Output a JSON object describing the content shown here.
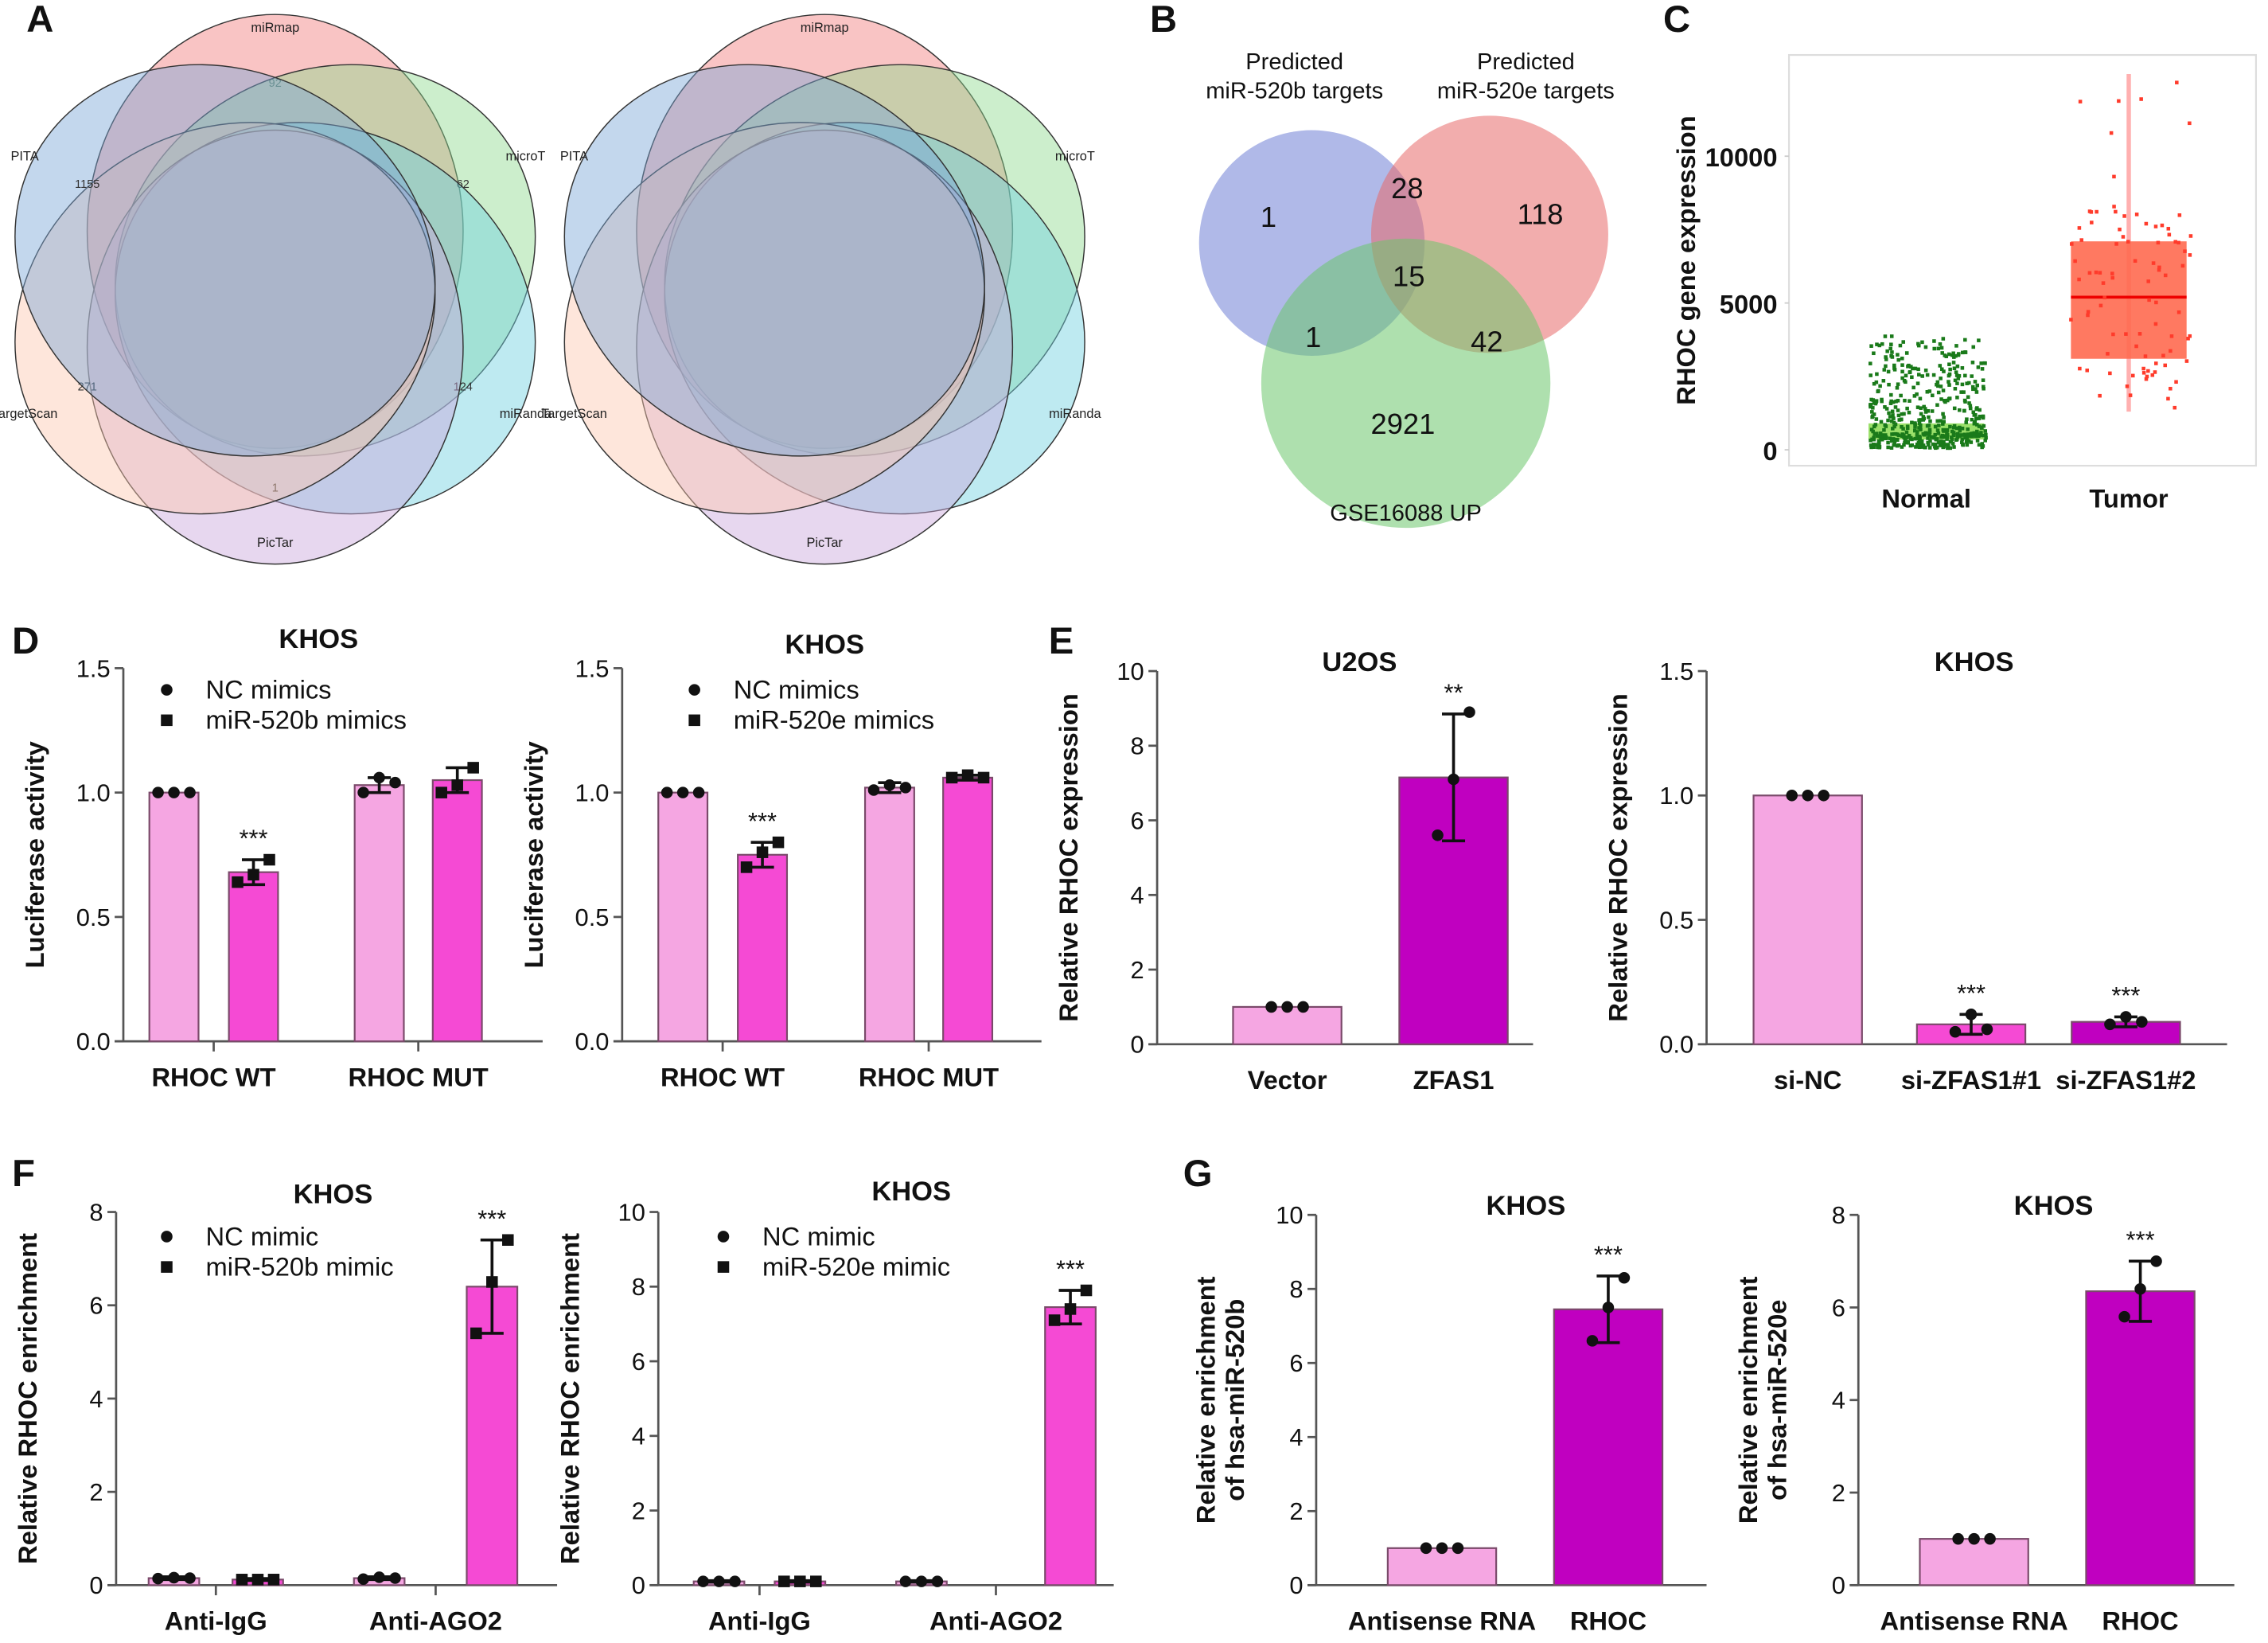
{
  "panel_letters": [
    "A",
    "B",
    "C",
    "D",
    "E",
    "F",
    "G"
  ],
  "diagrams": {
    "venn_A": [
      {
        "sets": [
          {
            "name": "miRmap",
            "color": "#f27c7c",
            "outer": "92"
          },
          {
            "name": "microT",
            "color": "#8fd98f",
            "outer": "62"
          },
          {
            "name": "miRanda",
            "color": "#6fd0e0",
            "outer": "124"
          },
          {
            "name": "PicTar",
            "color": "#c9a6dc",
            "outer": "1"
          },
          {
            "name": "TargetScan",
            "color": "#fcc7b0",
            "outer": "271"
          },
          {
            "name": "PITA",
            "color": "#7aa6d6",
            "outer": "1155"
          }
        ]
      },
      {
        "sets": [
          {
            "name": "miRmap",
            "color": "#f27c7c"
          },
          {
            "name": "microT",
            "color": "#8fd98f"
          },
          {
            "name": "miRanda",
            "color": "#6fd0e0"
          },
          {
            "name": "PicTar",
            "color": "#c9a6dc"
          },
          {
            "name": "TargetScan",
            "color": "#fcc7b0"
          },
          {
            "name": "PITA",
            "color": "#7aa6d6"
          }
        ]
      }
    ],
    "venn_B": {
      "sets": [
        {
          "name": "Predicted\nmiR-520b targets",
          "color": "#6f7fd6"
        },
        {
          "name": "Predicted\nmiR-520e targets",
          "color": "#e86a6a"
        },
        {
          "name": "GSE16088 UP",
          "color": "#6cc76c"
        }
      ],
      "regions": {
        "b_only": "1",
        "e_only": "118",
        "geo_only": "2921",
        "b_e": "28",
        "b_geo": "1",
        "e_geo": "42",
        "all": "15"
      }
    }
  },
  "chart_data": [
    {
      "panel": "C",
      "type": "box",
      "ylabel": "RHOC gene expression",
      "yticks": [
        "0",
        "5000",
        "10000"
      ],
      "ylim": [
        0,
        13000
      ],
      "categories": [
        "Normal",
        "Tumor"
      ],
      "groups": [
        {
          "name": "Normal",
          "color": "#1a7a1a",
          "median": 600,
          "q1": 350,
          "q3": 900,
          "min": 100,
          "max": 3700
        },
        {
          "name": "Tumor",
          "color": "#ff3b2b",
          "median": 5200,
          "q1": 3100,
          "q3": 7100,
          "min": 1300,
          "max": 12800
        }
      ]
    },
    {
      "panel": "D",
      "type": "bar",
      "title": "KHOS",
      "ylabel": [
        "Luciferase activity"
      ],
      "ylim": [
        0,
        1.5
      ],
      "yticks": [
        "0.0",
        "0.5",
        "1.0",
        "1.5"
      ],
      "categories": [
        "RHOC WT",
        "RHOC MUT"
      ],
      "legend": "top-left",
      "series": [
        {
          "name": "NC mimics",
          "marker": "circle",
          "colors": [
            "#f5a6e2",
            "#f5a6e2"
          ],
          "values": [
            1.0,
            1.03
          ],
          "errors": [
            0,
            0.03
          ],
          "points": [
            [
              1,
              1,
              1
            ],
            [
              1.0,
              1.06,
              1.04
            ]
          ],
          "sig": [
            "",
            ""
          ]
        },
        {
          "name": "miR-520b mimics",
          "marker": "square",
          "colors": [
            "#f54ad4",
            "#f54ad4"
          ],
          "values": [
            0.68,
            1.05
          ],
          "errors": [
            0.05,
            0.05
          ],
          "points": [
            [
              0.64,
              0.67,
              0.73
            ],
            [
              1.0,
              1.03,
              1.1
            ]
          ],
          "sig": [
            "***",
            ""
          ]
        }
      ]
    },
    {
      "panel": "D",
      "type": "bar",
      "title": "KHOS",
      "ylabel": [
        "Luciferase activity"
      ],
      "ylim": [
        0,
        1.5
      ],
      "yticks": [
        "0.0",
        "0.5",
        "1.0",
        "1.5"
      ],
      "categories": [
        "RHOC WT",
        "RHOC MUT"
      ],
      "legend": "top-left",
      "series": [
        {
          "name": "NC mimics",
          "marker": "circle",
          "colors": [
            "#f5a6e2",
            "#f5a6e2"
          ],
          "values": [
            1.0,
            1.02
          ],
          "errors": [
            0,
            0.02
          ],
          "points": [
            [
              1,
              1,
              1
            ],
            [
              1.01,
              1.03,
              1.02
            ]
          ],
          "sig": [
            "",
            ""
          ]
        },
        {
          "name": "miR-520e mimics",
          "marker": "square",
          "colors": [
            "#f54ad4",
            "#f54ad4"
          ],
          "values": [
            0.75,
            1.06
          ],
          "errors": [
            0.05,
            0.01
          ],
          "points": [
            [
              0.7,
              0.76,
              0.8
            ],
            [
              1.06,
              1.07,
              1.06
            ]
          ],
          "sig": [
            "***",
            ""
          ]
        }
      ]
    },
    {
      "panel": "E",
      "type": "bar",
      "title": "U2OS",
      "ylabel": [
        "Relative RHOC  expression"
      ],
      "ylim": [
        0,
        10
      ],
      "yticks": [
        "0",
        "2",
        "4",
        "6",
        "8",
        "10"
      ],
      "categories": [
        "Vector",
        "ZFAS1"
      ],
      "series": [
        {
          "marker": "circle",
          "colors": [
            "#f5a6e2",
            "#c000c0"
          ],
          "values": [
            1.0,
            7.15
          ],
          "errors": [
            0,
            1.7
          ],
          "points": [
            [
              1,
              1,
              1
            ],
            [
              5.6,
              7.1,
              8.9
            ]
          ],
          "sig": [
            "",
            "**"
          ]
        }
      ]
    },
    {
      "panel": "E",
      "type": "bar",
      "title": "KHOS",
      "ylabel": [
        "Relative RHOC  expression"
      ],
      "ylim": [
        0,
        1.5
      ],
      "yticks": [
        "0.0",
        "0.5",
        "1.0",
        "1.5"
      ],
      "categories": [
        "si-NC",
        "si-ZFAS1#1",
        "si-ZFAS1#2"
      ],
      "series": [
        {
          "marker": "circle",
          "colors": [
            "#f5a6e2",
            "#f54ad4",
            "#c000c0"
          ],
          "values": [
            1.0,
            0.08,
            0.09
          ],
          "errors": [
            0,
            0.04,
            0.02
          ],
          "points": [
            [
              1,
              1,
              1
            ],
            [
              0.05,
              0.12,
              0.06
            ],
            [
              0.08,
              0.11,
              0.09
            ]
          ],
          "sig": [
            "",
            "***",
            "***"
          ]
        }
      ]
    },
    {
      "panel": "F",
      "type": "bar",
      "title": "KHOS",
      "ylabel": [
        "Relative RHOC enrichment"
      ],
      "ylim": [
        0,
        8
      ],
      "yticks": [
        "0",
        "2",
        "4",
        "6",
        "8"
      ],
      "categories": [
        "Anti-IgG",
        "Anti-AGO2"
      ],
      "legend": "top-left",
      "series": [
        {
          "name": "NC mimic",
          "marker": "circle",
          "colors": [
            "#f5a6e2",
            "#f5a6e2"
          ],
          "values": [
            0.15,
            0.15
          ],
          "errors": [
            0.03,
            0.03
          ],
          "points": [
            [
              0.14,
              0.16,
              0.15
            ],
            [
              0.13,
              0.17,
              0.15
            ]
          ],
          "sig": [
            "",
            ""
          ]
        },
        {
          "name": "miR-520b mimic",
          "marker": "square",
          "colors": [
            "#f54ad4",
            "#f54ad4"
          ],
          "values": [
            0.12,
            6.4
          ],
          "errors": [
            0.02,
            1.0
          ],
          "points": [
            [
              0.12,
              0.12,
              0.12
            ],
            [
              5.4,
              6.5,
              7.4
            ]
          ],
          "sig": [
            "",
            "***"
          ]
        }
      ]
    },
    {
      "panel": "F",
      "type": "bar",
      "title": "KHOS",
      "ylabel": [
        "Relative RHOC enrichment"
      ],
      "ylim": [
        0,
        10
      ],
      "yticks": [
        "0",
        "2",
        "4",
        "6",
        "8",
        "10"
      ],
      "categories": [
        "Anti-IgG",
        "Anti-AGO2"
      ],
      "legend": "top-left",
      "series": [
        {
          "name": "NC mimic",
          "marker": "circle",
          "colors": [
            "#f5a6e2",
            "#f5a6e2"
          ],
          "values": [
            0.1,
            0.1
          ],
          "errors": [
            0.02,
            0.02
          ],
          "points": [
            [
              0.1,
              0.1,
              0.1
            ],
            [
              0.1,
              0.1,
              0.1
            ]
          ],
          "sig": [
            "",
            ""
          ]
        },
        {
          "name": "miR-520e mimic",
          "marker": "square",
          "colors": [
            "#f54ad4",
            "#f54ad4"
          ],
          "values": [
            0.1,
            7.45
          ],
          "errors": [
            0.02,
            0.45
          ],
          "points": [
            [
              0.1,
              0.1,
              0.1
            ],
            [
              7.1,
              7.4,
              7.9
            ]
          ],
          "sig": [
            "",
            "***"
          ]
        }
      ]
    },
    {
      "panel": "G",
      "type": "bar",
      "title": "KHOS",
      "ylabel": [
        "Relative enrichment",
        "of hsa-miR-520b"
      ],
      "ylim": [
        0,
        10
      ],
      "yticks": [
        "0",
        "2",
        "4",
        "6",
        "8",
        "10"
      ],
      "categories": [
        "Antisense RNA",
        "RHOC"
      ],
      "series": [
        {
          "marker": "circle",
          "colors": [
            "#f5a6e2",
            "#c000c0"
          ],
          "values": [
            1.0,
            7.45
          ],
          "errors": [
            0,
            0.9
          ],
          "points": [
            [
              1,
              1,
              1
            ],
            [
              6.6,
              7.5,
              8.3
            ]
          ],
          "sig": [
            "",
            "***"
          ]
        }
      ]
    },
    {
      "panel": "G",
      "type": "bar",
      "title": "KHOS",
      "ylabel": [
        "Relative enrichment",
        "of hsa-miR-520e"
      ],
      "ylim": [
        0,
        8
      ],
      "yticks": [
        "0",
        "2",
        "4",
        "6",
        "8"
      ],
      "categories": [
        "Antisense RNA",
        "RHOC"
      ],
      "series": [
        {
          "marker": "circle",
          "colors": [
            "#f5a6e2",
            "#c000c0"
          ],
          "values": [
            1.0,
            6.35
          ],
          "errors": [
            0,
            0.65
          ],
          "points": [
            [
              1,
              1,
              1
            ],
            [
              5.8,
              6.4,
              7.0
            ]
          ],
          "sig": [
            "",
            "***"
          ]
        }
      ]
    }
  ]
}
